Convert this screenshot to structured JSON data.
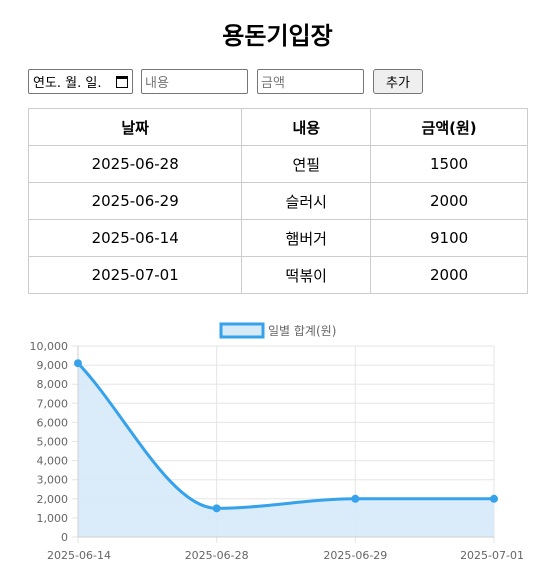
{
  "page": {
    "title": "용돈기입장"
  },
  "form": {
    "date_placeholder": "연도. 월. 일.",
    "desc_placeholder": "내용",
    "amount_placeholder": "금액",
    "add_label": "추가"
  },
  "table": {
    "headers": [
      "날짜",
      "내용",
      "금액(원)"
    ],
    "rows": [
      [
        "2025-06-28",
        "연필",
        "1500"
      ],
      [
        "2025-06-29",
        "슬러시",
        "2000"
      ],
      [
        "2025-06-14",
        "햄버거",
        "9100"
      ],
      [
        "2025-07-01",
        "떡볶이",
        "2000"
      ]
    ]
  },
  "chart_data": {
    "type": "line",
    "x": [
      "2025-06-14",
      "2025-06-28",
      "2025-06-29",
      "2025-07-01"
    ],
    "series": [
      {
        "name": "일별 합계(원)",
        "values": [
          9100,
          1500,
          2000,
          2000
        ]
      }
    ],
    "yticks": [
      "0",
      "1,000",
      "2,000",
      "3,000",
      "4,000",
      "5,000",
      "6,000",
      "7,000",
      "8,000",
      "9,000",
      "10,000"
    ],
    "ylim": [
      0,
      10000
    ],
    "grid": true,
    "legend": "top-center",
    "line_color": "#36a2eb",
    "fill_color": "#d6eaf8"
  }
}
